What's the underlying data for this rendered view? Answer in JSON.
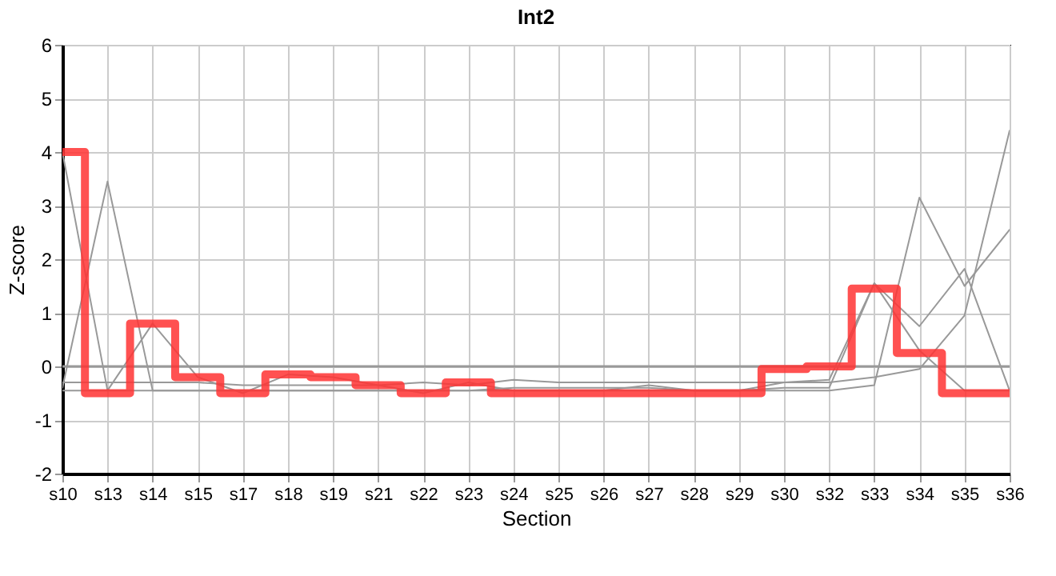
{
  "chart_data": {
    "type": "line",
    "title": "Int2",
    "xlabel": "Section",
    "ylabel": "Z-score",
    "categories": [
      "s10",
      "s13",
      "s14",
      "s15",
      "s17",
      "s18",
      "s19",
      "s21",
      "s22",
      "s23",
      "s24",
      "s25",
      "s26",
      "s27",
      "s28",
      "s29",
      "s30",
      "s32",
      "s33",
      "s34",
      "s35",
      "s36"
    ],
    "ylim": [
      -2,
      6
    ],
    "yticks": [
      -2,
      -1,
      0,
      1,
      2,
      3,
      4,
      5,
      6
    ],
    "grid": true,
    "marker": "none",
    "line_style": "solid",
    "ref_lines": [
      {
        "axis": "y",
        "value": 0,
        "color": "#999999"
      }
    ],
    "series": [
      {
        "type": "line",
        "color": "#999999",
        "values": [
          -0.4,
          3.45,
          -0.45,
          -0.45,
          -0.45,
          -0.45,
          -0.45,
          -0.45,
          -0.45,
          -0.45,
          -0.4,
          -0.4,
          -0.4,
          -0.4,
          -0.45,
          -0.45,
          -0.45,
          -0.45,
          -0.35,
          3.15,
          1.5,
          2.55
        ]
      },
      {
        "type": "line",
        "color": "#999999",
        "values": [
          4.0,
          -0.45,
          0.8,
          -0.2,
          -0.5,
          -0.15,
          -0.2,
          -0.35,
          -0.5,
          -0.3,
          -0.45,
          -0.45,
          -0.45,
          -0.35,
          -0.45,
          -0.45,
          -0.3,
          -0.25,
          1.55,
          0.3,
          -0.45,
          -0.45
        ]
      },
      {
        "type": "line",
        "color": "#999999",
        "values": [
          -0.3,
          -0.3,
          -0.3,
          -0.3,
          -0.35,
          -0.35,
          -0.35,
          -0.35,
          -0.3,
          -0.35,
          -0.25,
          -0.3,
          -0.3,
          -0.3,
          -0.3,
          -0.3,
          -0.3,
          -0.3,
          -0.2,
          -0.05,
          0.95,
          4.4
        ]
      },
      {
        "type": "line",
        "color": "#999999",
        "values": [
          -0.45,
          -0.45,
          -0.45,
          -0.45,
          -0.45,
          -0.45,
          -0.45,
          -0.45,
          -0.45,
          -0.45,
          -0.45,
          -0.45,
          -0.45,
          -0.45,
          -0.45,
          -0.45,
          -0.4,
          -0.4,
          1.55,
          0.75,
          1.82,
          -0.45
        ]
      },
      {
        "type": "step",
        "color": "#ff3333",
        "values": [
          4.0,
          -0.5,
          0.8,
          -0.2,
          -0.5,
          -0.15,
          -0.2,
          -0.35,
          -0.5,
          -0.3,
          -0.5,
          -0.5,
          -0.5,
          -0.5,
          -0.5,
          -0.5,
          -0.05,
          0.0,
          1.45,
          0.25,
          -0.5,
          -0.5
        ]
      }
    ]
  }
}
